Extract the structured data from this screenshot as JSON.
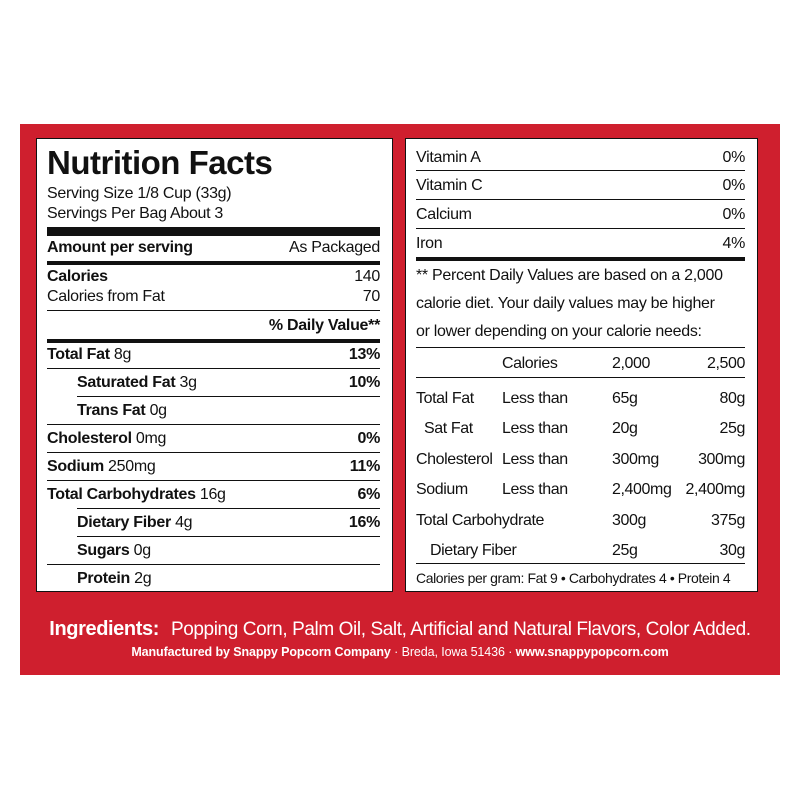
{
  "nutrition": {
    "title": "Nutrition Facts",
    "serving_size": "Serving Size 1/8 Cup (33g)",
    "servings_per": "Servings Per Bag About 3",
    "amount_header": "Amount per serving",
    "as_packaged": "As Packaged",
    "calories_label": "Calories",
    "calories_value": "140",
    "calories_fat_label": "Calories from Fat",
    "calories_fat_value": "70",
    "dv_header": "% Daily Value**",
    "rows": [
      {
        "label_bold": "Total Fat",
        "amount": " 8g",
        "pct": "13%"
      },
      {
        "label_bold": "Saturated Fat",
        "amount": " 3g",
        "pct": "10%"
      },
      {
        "label_bold": "Trans Fat",
        "amount": " 0g",
        "pct": ""
      },
      {
        "label_bold": "Cholesterol",
        "amount": " 0mg",
        "pct": "0%"
      },
      {
        "label_bold": "Sodium",
        "amount": " 250mg",
        "pct": "11%"
      },
      {
        "label_bold": "Total Carbohydrates",
        "amount": " 16g",
        "pct": "6%"
      },
      {
        "label_bold": "Dietary Fiber",
        "amount": " 4g",
        "pct": "16%"
      },
      {
        "label_bold": "Sugars",
        "amount": " 0g",
        "pct": ""
      },
      {
        "label_bold": "Protein",
        "amount": " 2g",
        "pct": ""
      }
    ]
  },
  "vitamins": [
    {
      "name": "Vitamin A",
      "pct": "0%"
    },
    {
      "name": "Vitamin C",
      "pct": "0%"
    },
    {
      "name": "Calcium",
      "pct": "0%"
    },
    {
      "name": "Iron",
      "pct": "4%"
    }
  ],
  "note": {
    "line1": "** Percent Daily Values are based on a 2,000",
    "line2": "calorie diet.  Your daily values may be higher",
    "line3": "or lower depending on your calorie needs:"
  },
  "dv_table": {
    "header": [
      "",
      "Calories",
      "2,000",
      "2,500"
    ],
    "rows": [
      [
        "Total Fat",
        "Less than",
        "65g",
        "80g"
      ],
      [
        "Sat Fat",
        "Less than",
        "20g",
        "25g"
      ],
      [
        "Cholesterol",
        "Less than",
        "300mg",
        "300mg"
      ],
      [
        "Sodium",
        "Less than",
        "2,400mg",
        "2,400mg"
      ],
      [
        "Total Carbohydrate",
        "",
        "300g",
        "375g"
      ],
      [
        "Dietary Fiber",
        "",
        "25g",
        "30g"
      ]
    ]
  },
  "calories_per_gram": "Calories per gram: Fat 9 • Carbohydrates 4 • Protein 4",
  "ingredients": {
    "label": "Ingredients:",
    "text": "Popping Corn, Palm Oil, Salt, Artificial and Natural Flavors, Color Added."
  },
  "manufacturer": {
    "bold": "Manufactured by Snappy Popcorn Company",
    "plain": " · Breda, Iowa  51436 · ",
    "site": "www.snappypopcorn.com"
  }
}
